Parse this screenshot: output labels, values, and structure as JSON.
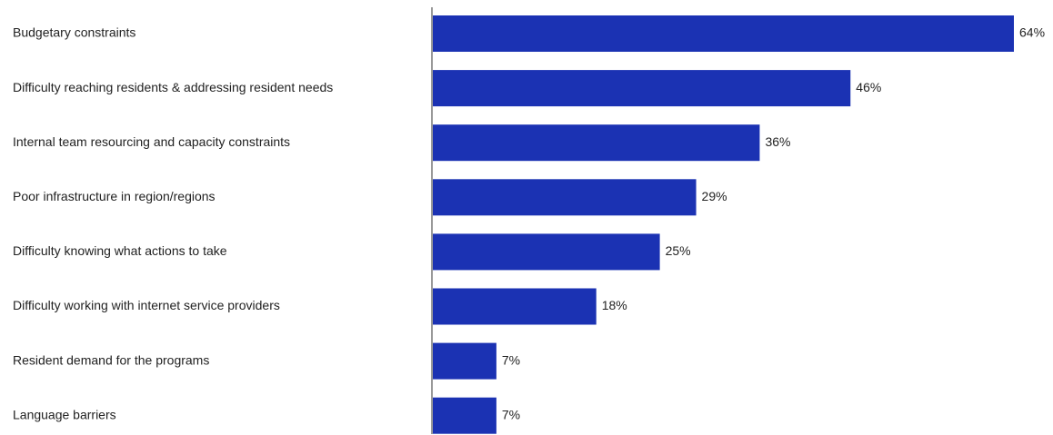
{
  "chart_data": {
    "type": "bar",
    "orientation": "horizontal",
    "categories": [
      "Budgetary constraints",
      "Difficulty reaching residents & addressing resident needs",
      "Internal team resourcing and capacity constraints",
      "Poor infrastructure in region/regions",
      "Difficulty knowing what actions to take",
      "Difficulty working with internet service providers",
      "Resident demand for the programs",
      "Language barriers"
    ],
    "values": [
      64,
      46,
      36,
      29,
      25,
      18,
      7,
      7
    ],
    "value_labels": [
      "64%",
      "46%",
      "36%",
      "29%",
      "25%",
      "18%",
      "7%",
      "7%"
    ],
    "unit": "%",
    "title": "",
    "xlabel": "",
    "ylabel": "",
    "xlim": [
      0,
      64
    ],
    "grid": false,
    "legend": "none",
    "bar_color": "#1b32b3",
    "axis_color": "#333333"
  }
}
